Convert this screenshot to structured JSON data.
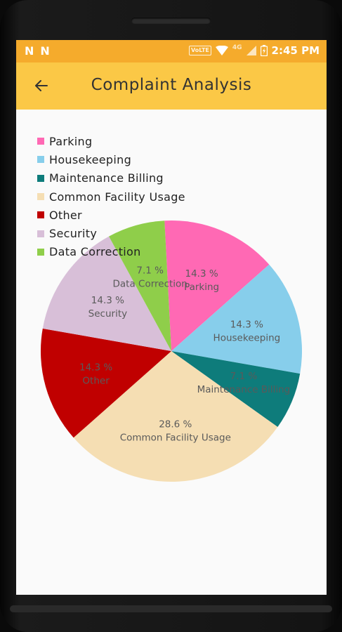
{
  "status_bar": {
    "time": "2:45 PM",
    "left_icons": [
      "n-notification-icon",
      "n-notification-icon"
    ],
    "volte": "VoLTE",
    "network": "4G"
  },
  "app_bar": {
    "title": "Complaint Analysis",
    "back_icon": "arrow-back-icon"
  },
  "chart_data": {
    "type": "pie",
    "legend_position": "top-left",
    "categories": [
      "Parking",
      "Housekeeping",
      "Maintenance Billing",
      "Common Facility Usage",
      "Other",
      "Security",
      "Data Correction"
    ],
    "values": [
      14.3,
      14.3,
      7.1,
      28.6,
      14.3,
      14.3,
      7.1
    ],
    "value_labels": [
      "14.3 %",
      "14.3 %",
      "7.1 %",
      "28.6 %",
      "14.3 %",
      "14.3 %",
      "7.1 %"
    ],
    "colors": [
      "#ff69b4",
      "#87ceeb",
      "#0e7c7b",
      "#f5deb3",
      "#c00000",
      "#d8bfd8",
      "#8fce4a"
    ]
  }
}
